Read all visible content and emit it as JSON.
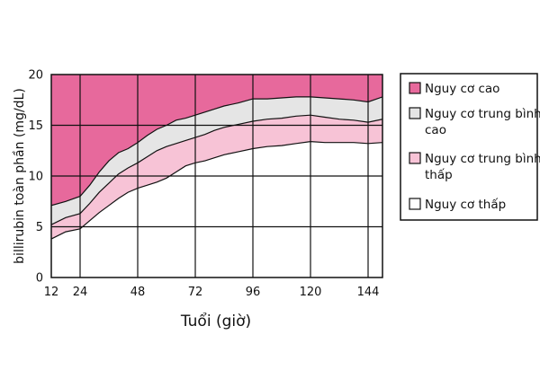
{
  "chart_data": {
    "type": "area",
    "xlabel": "Tuổi (giờ)",
    "ylabel": "billirubin toàn phần (mg/dL)",
    "xlim": [
      12,
      150
    ],
    "ylim": [
      0,
      20
    ],
    "x_ticks": [
      "12",
      "24",
      "48",
      "72",
      "96",
      "120",
      "144"
    ],
    "y_ticks": [
      "0",
      "5",
      "10",
      "15",
      "20"
    ],
    "grid": true,
    "legend_placement": "right",
    "series": [
      {
        "name": "Nguy cơ cao",
        "color": "#e7699c",
        "upper": [
          [
            12,
            20
          ],
          [
            150,
            20
          ]
        ]
      },
      {
        "name": "Nguy cơ trung bình cao",
        "color": "#e5e5e5",
        "upper": [
          [
            12,
            7.1
          ],
          [
            18,
            7.5
          ],
          [
            24,
            8.0
          ],
          [
            28,
            9.1
          ],
          [
            32,
            10.4
          ],
          [
            36,
            11.5
          ],
          [
            40,
            12.3
          ],
          [
            44,
            12.7
          ],
          [
            48,
            13.3
          ],
          [
            52,
            14.0
          ],
          [
            56,
            14.6
          ],
          [
            60,
            15.0
          ],
          [
            64,
            15.5
          ],
          [
            68,
            15.7
          ],
          [
            72,
            16.0
          ],
          [
            76,
            16.3
          ],
          [
            80,
            16.6
          ],
          [
            84,
            16.9
          ],
          [
            90,
            17.2
          ],
          [
            96,
            17.6
          ],
          [
            102,
            17.6
          ],
          [
            108,
            17.7
          ],
          [
            114,
            17.8
          ],
          [
            120,
            17.8
          ],
          [
            126,
            17.7
          ],
          [
            132,
            17.6
          ],
          [
            138,
            17.5
          ],
          [
            144,
            17.3
          ],
          [
            150,
            17.8
          ]
        ]
      },
      {
        "name": "Nguy cơ trung bình thấp",
        "color": "#f7c3d6",
        "upper": [
          [
            12,
            5.2
          ],
          [
            18,
            5.9
          ],
          [
            24,
            6.3
          ],
          [
            28,
            7.3
          ],
          [
            32,
            8.4
          ],
          [
            36,
            9.3
          ],
          [
            40,
            10.2
          ],
          [
            44,
            10.8
          ],
          [
            48,
            11.3
          ],
          [
            52,
            11.9
          ],
          [
            56,
            12.5
          ],
          [
            60,
            12.9
          ],
          [
            64,
            13.2
          ],
          [
            68,
            13.5
          ],
          [
            72,
            13.8
          ],
          [
            76,
            14.1
          ],
          [
            80,
            14.5
          ],
          [
            84,
            14.8
          ],
          [
            90,
            15.1
          ],
          [
            96,
            15.4
          ],
          [
            102,
            15.6
          ],
          [
            108,
            15.7
          ],
          [
            114,
            15.9
          ],
          [
            120,
            16.0
          ],
          [
            126,
            15.8
          ],
          [
            132,
            15.6
          ],
          [
            138,
            15.5
          ],
          [
            144,
            15.3
          ],
          [
            150,
            15.6
          ]
        ]
      },
      {
        "name": "Nguy cơ thấp",
        "color": "#ffffff",
        "upper": [
          [
            12,
            3.8
          ],
          [
            18,
            4.5
          ],
          [
            24,
            4.8
          ],
          [
            28,
            5.6
          ],
          [
            32,
            6.4
          ],
          [
            36,
            7.1
          ],
          [
            40,
            7.8
          ],
          [
            44,
            8.4
          ],
          [
            48,
            8.8
          ],
          [
            52,
            9.1
          ],
          [
            56,
            9.4
          ],
          [
            60,
            9.8
          ],
          [
            64,
            10.4
          ],
          [
            68,
            11.0
          ],
          [
            72,
            11.3
          ],
          [
            76,
            11.5
          ],
          [
            80,
            11.8
          ],
          [
            84,
            12.1
          ],
          [
            90,
            12.4
          ],
          [
            96,
            12.7
          ],
          [
            102,
            12.9
          ],
          [
            108,
            13.0
          ],
          [
            114,
            13.2
          ],
          [
            120,
            13.4
          ],
          [
            126,
            13.3
          ],
          [
            132,
            13.3
          ],
          [
            138,
            13.3
          ],
          [
            144,
            13.2
          ],
          [
            150,
            13.3
          ]
        ]
      }
    ]
  }
}
